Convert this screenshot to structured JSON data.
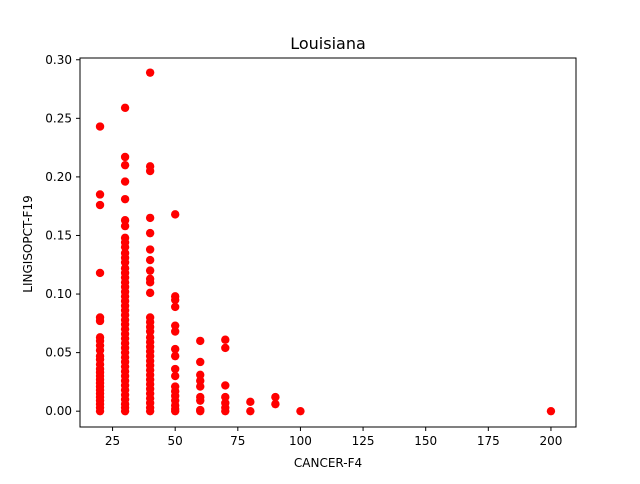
{
  "chart_data": {
    "type": "scatter",
    "title": "Louisiana",
    "xlabel": "CANCER-F4",
    "ylabel": "LINGISOPCT-F19",
    "xlim": [
      12,
      210
    ],
    "ylim": [
      -0.0135,
      0.3015
    ],
    "xticks": [
      25,
      50,
      75,
      100,
      125,
      150,
      175,
      200
    ],
    "xtick_labels": [
      "25",
      "50",
      "75",
      "100",
      "125",
      "150",
      "175",
      "200"
    ],
    "yticks": [
      0.0,
      0.05,
      0.1,
      0.15,
      0.2,
      0.25,
      0.3
    ],
    "ytick_labels": [
      "0.00",
      "0.05",
      "0.10",
      "0.15",
      "0.20",
      "0.25",
      "0.30"
    ],
    "grid": false,
    "legend": "none",
    "marker_color": "#ff0000",
    "points": [
      {
        "x": 20,
        "y": 0.243
      },
      {
        "x": 20,
        "y": 0.185
      },
      {
        "x": 20,
        "y": 0.176
      },
      {
        "x": 20,
        "y": 0.118
      },
      {
        "x": 20,
        "y": 0.08
      },
      {
        "x": 20,
        "y": 0.077
      },
      {
        "x": 20,
        "y": 0.063
      },
      {
        "x": 20,
        "y": 0.06
      },
      {
        "x": 20,
        "y": 0.056
      },
      {
        "x": 20,
        "y": 0.052
      },
      {
        "x": 20,
        "y": 0.047
      },
      {
        "x": 20,
        "y": 0.044
      },
      {
        "x": 20,
        "y": 0.04
      },
      {
        "x": 20,
        "y": 0.036
      },
      {
        "x": 20,
        "y": 0.033
      },
      {
        "x": 20,
        "y": 0.03
      },
      {
        "x": 20,
        "y": 0.027
      },
      {
        "x": 20,
        "y": 0.024
      },
      {
        "x": 20,
        "y": 0.021
      },
      {
        "x": 20,
        "y": 0.018
      },
      {
        "x": 20,
        "y": 0.015
      },
      {
        "x": 20,
        "y": 0.012
      },
      {
        "x": 20,
        "y": 0.009
      },
      {
        "x": 20,
        "y": 0.006
      },
      {
        "x": 20,
        "y": 0.003
      },
      {
        "x": 20,
        "y": 0.0
      },
      {
        "x": 30,
        "y": 0.259
      },
      {
        "x": 30,
        "y": 0.217
      },
      {
        "x": 30,
        "y": 0.21
      },
      {
        "x": 30,
        "y": 0.196
      },
      {
        "x": 30,
        "y": 0.181
      },
      {
        "x": 30,
        "y": 0.163
      },
      {
        "x": 30,
        "y": 0.158
      },
      {
        "x": 30,
        "y": 0.148
      },
      {
        "x": 30,
        "y": 0.144
      },
      {
        "x": 30,
        "y": 0.14
      },
      {
        "x": 30,
        "y": 0.135
      },
      {
        "x": 30,
        "y": 0.131
      },
      {
        "x": 30,
        "y": 0.127
      },
      {
        "x": 30,
        "y": 0.122
      },
      {
        "x": 30,
        "y": 0.118
      },
      {
        "x": 30,
        "y": 0.114
      },
      {
        "x": 30,
        "y": 0.11
      },
      {
        "x": 30,
        "y": 0.106
      },
      {
        "x": 30,
        "y": 0.102
      },
      {
        "x": 30,
        "y": 0.098
      },
      {
        "x": 30,
        "y": 0.094
      },
      {
        "x": 30,
        "y": 0.09
      },
      {
        "x": 30,
        "y": 0.086
      },
      {
        "x": 30,
        "y": 0.082
      },
      {
        "x": 30,
        "y": 0.078
      },
      {
        "x": 30,
        "y": 0.074
      },
      {
        "x": 30,
        "y": 0.07
      },
      {
        "x": 30,
        "y": 0.066
      },
      {
        "x": 30,
        "y": 0.062
      },
      {
        "x": 30,
        "y": 0.058
      },
      {
        "x": 30,
        "y": 0.054
      },
      {
        "x": 30,
        "y": 0.05
      },
      {
        "x": 30,
        "y": 0.046
      },
      {
        "x": 30,
        "y": 0.042
      },
      {
        "x": 30,
        "y": 0.038
      },
      {
        "x": 30,
        "y": 0.034
      },
      {
        "x": 30,
        "y": 0.03
      },
      {
        "x": 30,
        "y": 0.026
      },
      {
        "x": 30,
        "y": 0.022
      },
      {
        "x": 30,
        "y": 0.018
      },
      {
        "x": 30,
        "y": 0.014
      },
      {
        "x": 30,
        "y": 0.01
      },
      {
        "x": 30,
        "y": 0.006
      },
      {
        "x": 30,
        "y": 0.003
      },
      {
        "x": 30,
        "y": 0.0
      },
      {
        "x": 40,
        "y": 0.289
      },
      {
        "x": 40,
        "y": 0.209
      },
      {
        "x": 40,
        "y": 0.205
      },
      {
        "x": 40,
        "y": 0.165
      },
      {
        "x": 40,
        "y": 0.152
      },
      {
        "x": 40,
        "y": 0.138
      },
      {
        "x": 40,
        "y": 0.129
      },
      {
        "x": 40,
        "y": 0.12
      },
      {
        "x": 40,
        "y": 0.113
      },
      {
        "x": 40,
        "y": 0.11
      },
      {
        "x": 40,
        "y": 0.101
      },
      {
        "x": 40,
        "y": 0.08
      },
      {
        "x": 40,
        "y": 0.076
      },
      {
        "x": 40,
        "y": 0.072
      },
      {
        "x": 40,
        "y": 0.068
      },
      {
        "x": 40,
        "y": 0.063
      },
      {
        "x": 40,
        "y": 0.059
      },
      {
        "x": 40,
        "y": 0.055
      },
      {
        "x": 40,
        "y": 0.051
      },
      {
        "x": 40,
        "y": 0.047
      },
      {
        "x": 40,
        "y": 0.043
      },
      {
        "x": 40,
        "y": 0.039
      },
      {
        "x": 40,
        "y": 0.035
      },
      {
        "x": 40,
        "y": 0.031
      },
      {
        "x": 40,
        "y": 0.027
      },
      {
        "x": 40,
        "y": 0.023
      },
      {
        "x": 40,
        "y": 0.019
      },
      {
        "x": 40,
        "y": 0.015
      },
      {
        "x": 40,
        "y": 0.011
      },
      {
        "x": 40,
        "y": 0.007
      },
      {
        "x": 40,
        "y": 0.003
      },
      {
        "x": 40,
        "y": 0.0
      },
      {
        "x": 50,
        "y": 0.168
      },
      {
        "x": 50,
        "y": 0.098
      },
      {
        "x": 50,
        "y": 0.095
      },
      {
        "x": 50,
        "y": 0.089
      },
      {
        "x": 50,
        "y": 0.073
      },
      {
        "x": 50,
        "y": 0.068
      },
      {
        "x": 50,
        "y": 0.053
      },
      {
        "x": 50,
        "y": 0.047
      },
      {
        "x": 50,
        "y": 0.036
      },
      {
        "x": 50,
        "y": 0.03
      },
      {
        "x": 50,
        "y": 0.021
      },
      {
        "x": 50,
        "y": 0.017
      },
      {
        "x": 50,
        "y": 0.013
      },
      {
        "x": 50,
        "y": 0.009
      },
      {
        "x": 50,
        "y": 0.005
      },
      {
        "x": 50,
        "y": 0.002
      },
      {
        "x": 50,
        "y": 0.0
      },
      {
        "x": 60,
        "y": 0.06
      },
      {
        "x": 60,
        "y": 0.042
      },
      {
        "x": 60,
        "y": 0.031
      },
      {
        "x": 60,
        "y": 0.026
      },
      {
        "x": 60,
        "y": 0.021
      },
      {
        "x": 60,
        "y": 0.012
      },
      {
        "x": 60,
        "y": 0.009
      },
      {
        "x": 60,
        "y": 0.001
      },
      {
        "x": 60,
        "y": 0.0
      },
      {
        "x": 70,
        "y": 0.061
      },
      {
        "x": 70,
        "y": 0.054
      },
      {
        "x": 70,
        "y": 0.022
      },
      {
        "x": 70,
        "y": 0.012
      },
      {
        "x": 70,
        "y": 0.007
      },
      {
        "x": 70,
        "y": 0.003
      },
      {
        "x": 70,
        "y": 0.0
      },
      {
        "x": 80,
        "y": 0.008
      },
      {
        "x": 80,
        "y": 0.0
      },
      {
        "x": 90,
        "y": 0.012
      },
      {
        "x": 90,
        "y": 0.006
      },
      {
        "x": 100,
        "y": 0.0
      },
      {
        "x": 200,
        "y": 0.0
      }
    ]
  }
}
